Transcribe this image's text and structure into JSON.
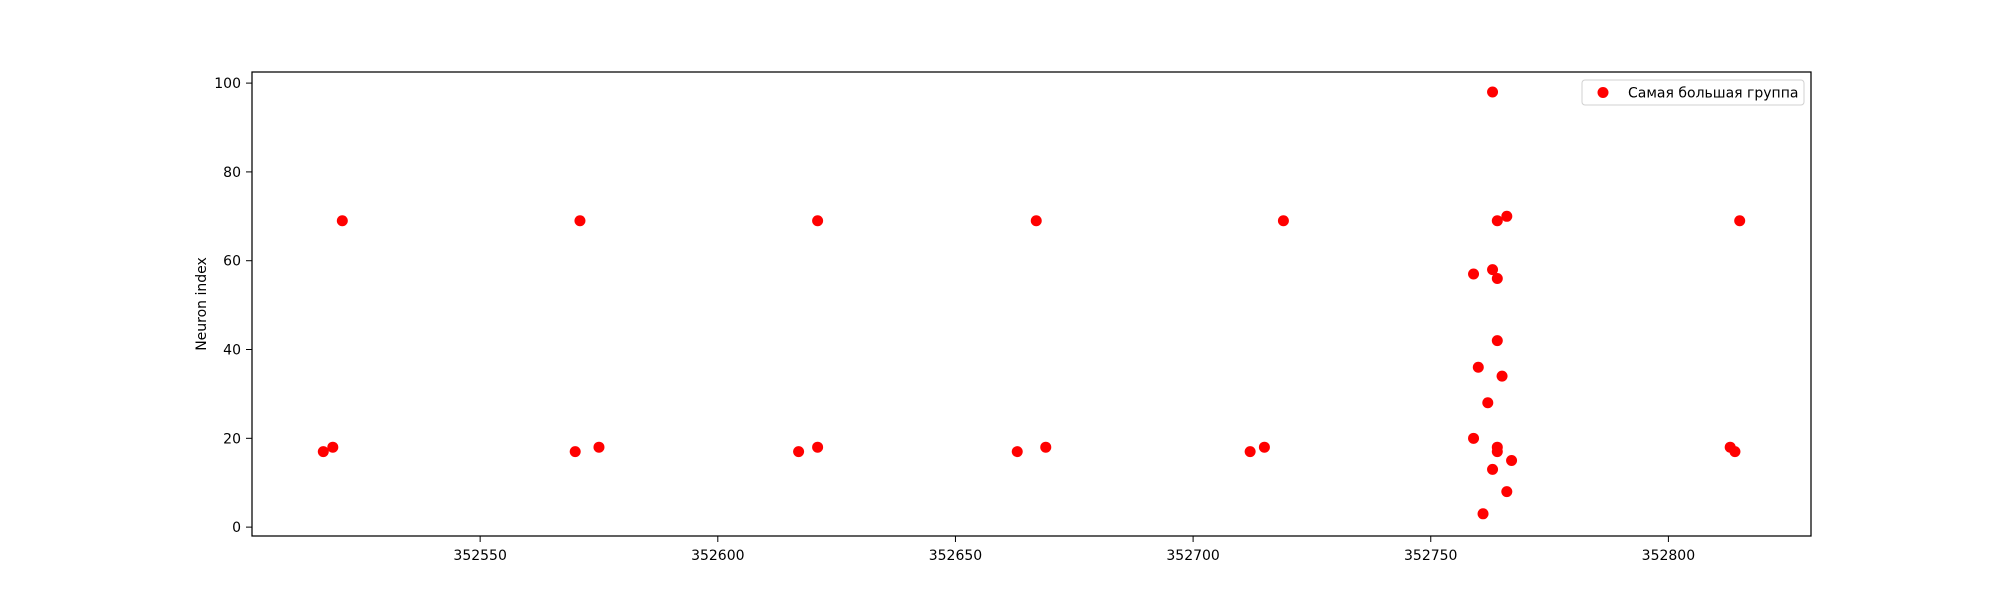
{
  "chart_data": {
    "type": "scatter",
    "title": "",
    "xlabel": "",
    "ylabel": "Neuron index",
    "xlim": [
      352502,
      352830
    ],
    "ylim": [
      -2,
      102.5
    ],
    "xticks": [
      352550,
      352600,
      352650,
      352700,
      352750,
      352800
    ],
    "yticks": [
      0,
      20,
      40,
      60,
      80,
      100
    ],
    "grid": false,
    "legend_position": "top-right",
    "series": [
      {
        "name": "Самая большая группа",
        "color": "#ff0000",
        "points": [
          [
            352517,
            17
          ],
          [
            352519,
            18
          ],
          [
            352521,
            69
          ],
          [
            352570,
            17
          ],
          [
            352571,
            69
          ],
          [
            352575,
            18
          ],
          [
            352617,
            17
          ],
          [
            352621,
            18
          ],
          [
            352621,
            69
          ],
          [
            352663,
            17
          ],
          [
            352667,
            69
          ],
          [
            352669,
            18
          ],
          [
            352712,
            17
          ],
          [
            352715,
            18
          ],
          [
            352719,
            69
          ],
          [
            352759,
            20
          ],
          [
            352759,
            57
          ],
          [
            352760,
            36
          ],
          [
            352761,
            3
          ],
          [
            352762,
            28
          ],
          [
            352763,
            98
          ],
          [
            352763,
            58
          ],
          [
            352763,
            13
          ],
          [
            352764,
            69
          ],
          [
            352764,
            56
          ],
          [
            352764,
            42
          ],
          [
            352764,
            18
          ],
          [
            352764,
            17
          ],
          [
            352765,
            34
          ],
          [
            352766,
            70
          ],
          [
            352766,
            8
          ],
          [
            352767,
            15
          ],
          [
            352813,
            18
          ],
          [
            352814,
            17
          ],
          [
            352815,
            69
          ]
        ]
      }
    ]
  }
}
